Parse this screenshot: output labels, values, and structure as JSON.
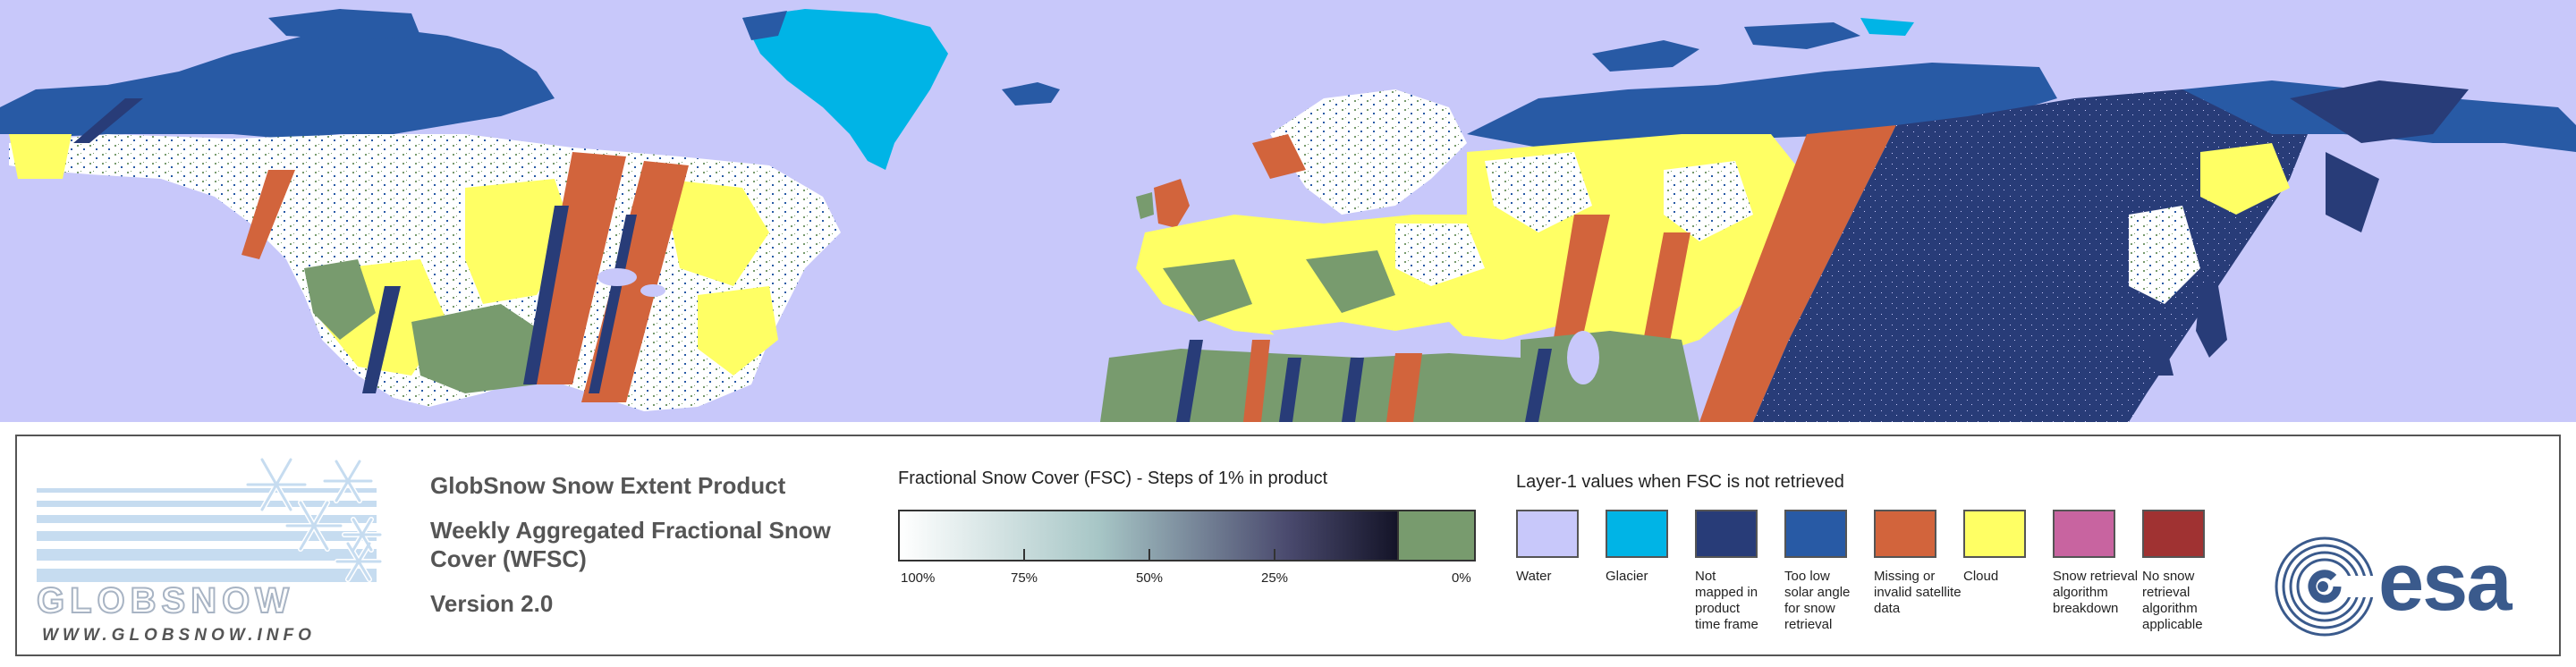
{
  "map": {
    "colors": {
      "water": "#c8c8fa",
      "glacier": "#00b4e6",
      "not_mapped": "#283c78",
      "low_sun": "#285aa5",
      "missing": "#d2643c",
      "cloud": "#ffff64",
      "no_snow": "#789b6e",
      "snow": "#ffffff"
    }
  },
  "logo": {
    "wordmark": "GLOBSNOW",
    "url": "WWW.GLOBSNOW.INFO"
  },
  "product": {
    "title": "GlobSnow Snow Extent Product",
    "subtitle_line1": "Weekly Aggregated Fractional Snow",
    "subtitle_line2": "Cover (WFSC)",
    "version": "Version 2.0"
  },
  "fsc": {
    "title": "Fractional Snow Cover (FSC) - Steps of 1% in product",
    "ticks": [
      "100%",
      "75%",
      "50%",
      "25%",
      "0%"
    ]
  },
  "layer1": {
    "title": "Layer-1 values when FSC is not retrieved",
    "items": [
      {
        "label_lines": [
          "Water"
        ],
        "color": "#c8c8fa"
      },
      {
        "label_lines": [
          "Glacier"
        ],
        "color": "#00b4e6"
      },
      {
        "label_lines": [
          "Not",
          "mapped in",
          "product",
          "time frame"
        ],
        "color": "#283c78"
      },
      {
        "label_lines": [
          "Too low",
          "solar angle",
          "for snow",
          "retrieval"
        ],
        "color": "#285aa5"
      },
      {
        "label_lines": [
          "Missing or",
          "invalid satellite",
          "data"
        ],
        "color": "#d2643c"
      },
      {
        "label_lines": [
          "Cloud"
        ],
        "color": "#ffff64"
      },
      {
        "label_lines": [
          "Snow retrieval",
          "algorithm",
          "breakdown"
        ],
        "color": "#c864a0"
      },
      {
        "label_lines": [
          "No snow",
          "retrieval",
          "algorithm",
          "applicable"
        ],
        "color": "#a03232"
      }
    ]
  },
  "esa": {
    "wordmark": "esa",
    "color": "#3a5a8c"
  }
}
